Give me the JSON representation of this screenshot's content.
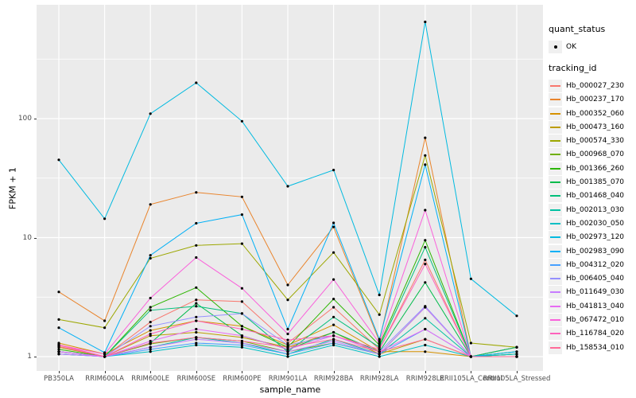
{
  "figure": {
    "background": "#FFFFFF",
    "panel_background": "#EBEBEB",
    "grid_color": "#FFFFFF",
    "tick_label_color": "#4D4D4D",
    "point_color": "#000000",
    "legend_key_background": "#F0F0F0"
  },
  "y_axis": {
    "title": "FPKM + 1",
    "tick_labels": [
      "1",
      "10",
      "100"
    ]
  },
  "x_axis": {
    "title": "sample_name"
  },
  "legend": {
    "quant_status": {
      "title": "quant_status",
      "items": [
        "OK"
      ]
    },
    "tracking_id": {
      "title": "tracking_id"
    }
  },
  "chart_data": {
    "type": "line",
    "log_y": true,
    "title": "",
    "xlabel": "sample_name",
    "ylabel": "FPKM + 1",
    "ylim": [
      0.75,
      1000
    ],
    "y_major_breaks": [
      1,
      10,
      100
    ],
    "y_minor_breaks": [
      3.162,
      31.62,
      316.2
    ],
    "grid": true,
    "legend_position": "right",
    "point_shape": "black-dot",
    "categories": [
      "PB350LA",
      "RRIM600LA",
      "RRIM600LE",
      "RRIM600SE",
      "RRIM600PE",
      "RRIM901LA",
      "RRIM928BA",
      "RRIM928LA",
      "RRIM928LE",
      "RRII105LA_Control",
      "RRII105LA_Stressed"
    ],
    "series": [
      {
        "name": "Hb_000027_230",
        "color": "#F8766D",
        "values": [
          1.25,
          1.0,
          1.95,
          3.0,
          2.9,
          1.3,
          2.6,
          1.15,
          6.5,
          1.0,
          1.0
        ]
      },
      {
        "name": "Hb_000237_170",
        "color": "#E9842C",
        "values": [
          3.5,
          2.0,
          19,
          24,
          22,
          4.0,
          12.3,
          1.35,
          69,
          1.0,
          1.2
        ]
      },
      {
        "name": "Hb_000352_060",
        "color": "#D69100",
        "values": [
          1.3,
          1.05,
          1.66,
          2.0,
          1.8,
          1.25,
          1.85,
          1.1,
          1.1,
          1.0,
          1.05
        ]
      },
      {
        "name": "Hb_000473_160",
        "color": "#BC9D00",
        "values": [
          1.2,
          1.0,
          1.5,
          1.6,
          1.45,
          1.2,
          1.6,
          1.05,
          1.4,
          1.0,
          1.2
        ]
      },
      {
        "name": "Hb_000574_330",
        "color": "#9CA700",
        "values": [
          2.05,
          1.75,
          6.7,
          8.6,
          8.9,
          3.0,
          7.5,
          2.25,
          49,
          1.3,
          1.2
        ]
      },
      {
        "name": "Hb_000968_070",
        "color": "#6FAE00",
        "values": [
          1.1,
          1.0,
          1.28,
          1.45,
          1.35,
          1.1,
          1.3,
          1.05,
          2.6,
          1.0,
          1.0
        ]
      },
      {
        "name": "Hb_001366_260",
        "color": "#2CB600",
        "values": [
          1.15,
          1.0,
          2.6,
          3.8,
          1.8,
          1.2,
          3.05,
          1.25,
          9.5,
          1.0,
          1.1
        ]
      },
      {
        "name": "Hb_001385_070",
        "color": "#00BB4B",
        "values": [
          1.1,
          1.0,
          1.3,
          2.8,
          1.5,
          1.15,
          1.6,
          1.1,
          4.2,
          1.0,
          1.05
        ]
      },
      {
        "name": "Hb_001468_040",
        "color": "#00BF7A",
        "values": [
          1.05,
          1.0,
          2.45,
          2.65,
          2.3,
          1.1,
          2.15,
          1.2,
          8.3,
          1.0,
          1.2
        ]
      },
      {
        "name": "Hb_002013_030",
        "color": "#00C1A2",
        "values": [
          1.1,
          1.0,
          1.2,
          1.45,
          1.3,
          1.05,
          1.4,
          1.05,
          2.1,
          1.0,
          1.0
        ]
      },
      {
        "name": "Hb_002030_050",
        "color": "#00BFC4",
        "values": [
          1.05,
          1.0,
          1.1,
          1.25,
          1.2,
          1.0,
          1.25,
          1.0,
          1.25,
          1.0,
          1.05
        ]
      },
      {
        "name": "Hb_002973_120",
        "color": "#00BAE0",
        "values": [
          45,
          14.4,
          110,
          200,
          95,
          27,
          37,
          3.3,
          650,
          4.5,
          2.2
        ]
      },
      {
        "name": "Hb_002983_090",
        "color": "#00B0F6",
        "values": [
          1.75,
          1.08,
          7.1,
          13.2,
          15.6,
          1.7,
          13.3,
          1.4,
          41,
          1.0,
          1.1
        ]
      },
      {
        "name": "Hb_004312_020",
        "color": "#47A0FF",
        "values": [
          1.1,
          1.0,
          1.15,
          1.3,
          1.25,
          1.05,
          1.3,
          1.05,
          1.7,
          1.0,
          1.0
        ]
      },
      {
        "name": "Hb_006405_040",
        "color": "#9590FF",
        "values": [
          1.1,
          1.0,
          1.8,
          2.15,
          2.3,
          1.25,
          1.5,
          1.1,
          2.65,
          1.0,
          1.0
        ]
      },
      {
        "name": "Hb_011649_030",
        "color": "#C77CFF",
        "values": [
          1.05,
          1.0,
          1.2,
          1.4,
          1.3,
          1.1,
          1.35,
          1.05,
          2.6,
          1.0,
          1.0
        ]
      },
      {
        "name": "Hb_041813_040",
        "color": "#E76BF3",
        "values": [
          1.1,
          1.0,
          1.35,
          1.7,
          1.5,
          1.15,
          1.5,
          1.1,
          1.7,
          1.0,
          1.0
        ]
      },
      {
        "name": "Hb_067472_010",
        "color": "#FA62DB",
        "values": [
          1.25,
          1.05,
          3.1,
          6.8,
          3.75,
          1.55,
          4.45,
          1.3,
          17,
          1.0,
          1.0
        ]
      },
      {
        "name": "Hb_116784_020",
        "color": "#FF62BC",
        "values": [
          1.26,
          1.0,
          1.55,
          2.0,
          1.7,
          1.38,
          1.5,
          1.15,
          6.0,
          1.0,
          1.0
        ]
      },
      {
        "name": "Hb_158534_010",
        "color": "#FF6A98",
        "values": [
          1.22,
          1.0,
          1.3,
          1.45,
          1.35,
          1.2,
          1.4,
          1.1,
          1.4,
          1.0,
          1.0
        ]
      }
    ]
  }
}
